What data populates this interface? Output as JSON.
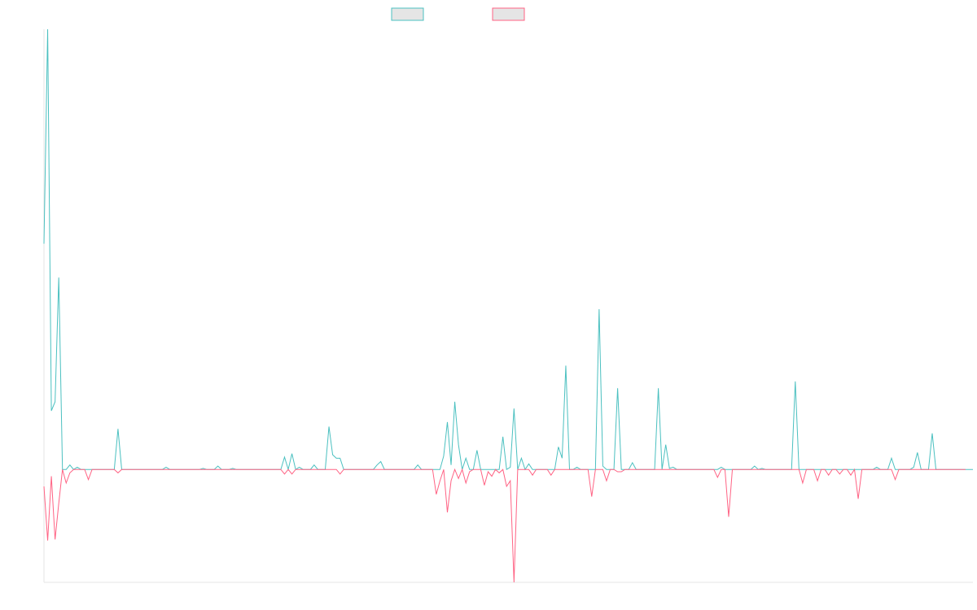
{
  "chart_data": {
    "type": "line",
    "title": "",
    "xlabel": "",
    "ylabel": "",
    "grid": false,
    "legend_position": "top-center",
    "x_count": 252,
    "ylim": [
      -1,
      3.9
    ],
    "series": [
      {
        "color": "#4bc0c0",
        "values": [
          2.0,
          3.9,
          0.52,
          0.6,
          1.7,
          0.0,
          0.0,
          0.04,
          0.0,
          0.02,
          0.0,
          0.0,
          0.0,
          0.0,
          0.0,
          0.0,
          0.0,
          0.0,
          0.0,
          0.0,
          0.36,
          0.0,
          0.0,
          0.0,
          0.0,
          0.0,
          0.0,
          0.0,
          0.0,
          0.0,
          0.0,
          0.0,
          0.0,
          0.02,
          0.0,
          0.0,
          0.0,
          0.0,
          0.0,
          0.0,
          0.0,
          0.0,
          0.0,
          0.01,
          0.0,
          0.0,
          0.0,
          0.03,
          0.0,
          0.0,
          0.0,
          0.01,
          0.0,
          0.0,
          0.0,
          0.0,
          0.0,
          0.0,
          0.0,
          0.0,
          0.0,
          0.0,
          0.0,
          0.0,
          0.0,
          0.11,
          0.0,
          0.14,
          0.0,
          0.02,
          0.0,
          0.0,
          0.0,
          0.04,
          0.0,
          0.0,
          0.0,
          0.38,
          0.13,
          0.1,
          0.1,
          0.0,
          0.0,
          0.0,
          0.0,
          0.0,
          0.0,
          0.0,
          0.0,
          0.0,
          0.04,
          0.07,
          0.0,
          0.0,
          0.0,
          0.0,
          0.0,
          0.0,
          0.0,
          0.0,
          0.0,
          0.04,
          0.0,
          0.0,
          0.0,
          0.0,
          0.0,
          0.0,
          0.12,
          0.42,
          0.04,
          0.6,
          0.22,
          0.0,
          0.1,
          0.0,
          0.0,
          0.17,
          0.0,
          0.0,
          0.0,
          0.0,
          0.0,
          0.0,
          0.29,
          0.0,
          0.02,
          0.54,
          0.0,
          0.1,
          0.0,
          0.05,
          0.0,
          0.0,
          0.0,
          0.0,
          0.0,
          0.0,
          0.0,
          0.2,
          0.1,
          0.92,
          0.0,
          0.0,
          0.02,
          0.0,
          0.0,
          0.0,
          0.0,
          0.0,
          1.42,
          0.03,
          0.0,
          0.0,
          0.0,
          0.72,
          0.0,
          0.0,
          0.0,
          0.06,
          0.0,
          0.0,
          0.0,
          0.0,
          0.0,
          0.0,
          0.72,
          0.0,
          0.22,
          0.01,
          0.02,
          0.0,
          0.0,
          0.0,
          0.0,
          0.0,
          0.0,
          0.0,
          0.0,
          0.0,
          0.0,
          0.0,
          0.0,
          0.02,
          0.0,
          0.0,
          0.0,
          0.0,
          0.0,
          0.0,
          0.0,
          0.0,
          0.03,
          0.0,
          0.01,
          0.0,
          0.0,
          0.0,
          0.0,
          0.0,
          0.0,
          0.0,
          0.0,
          0.78,
          0.0,
          0.0,
          0.0,
          0.0,
          0.0,
          0.0,
          0.0,
          0.0,
          0.0,
          0.0,
          0.0,
          0.0,
          0.0,
          0.0,
          0.0,
          0.0,
          0.0,
          0.0,
          0.0,
          0.0,
          0.0,
          0.02,
          0.0,
          0.0,
          0.0,
          0.1,
          0.0,
          0.0,
          0.0,
          0.0,
          0.0,
          0.02,
          0.15,
          0.0,
          0.0,
          0.0,
          0.32,
          0.0,
          0.0,
          0.0,
          0.0,
          0.0,
          0.0,
          0.0,
          0.0,
          0.0,
          0.0,
          0.0
        ]
      },
      {
        "color": "#ff6384",
        "values": [
          -0.15,
          -0.63,
          -0.06,
          -0.62,
          -0.3,
          0.0,
          -0.12,
          -0.03,
          0.0,
          0.0,
          0.0,
          0.0,
          -0.09,
          0.0,
          0.0,
          0.0,
          0.0,
          0.0,
          0.0,
          0.0,
          -0.03,
          0.0,
          0.0,
          0.0,
          0.0,
          0.0,
          0.0,
          0.0,
          0.0,
          0.0,
          0.0,
          0.0,
          0.0,
          0.0,
          0.0,
          0.0,
          0.0,
          0.0,
          0.0,
          0.0,
          0.0,
          0.0,
          0.0,
          0.0,
          0.0,
          0.0,
          0.0,
          0.0,
          0.0,
          0.0,
          0.0,
          0.0,
          0.0,
          0.0,
          0.0,
          0.0,
          0.0,
          0.0,
          0.0,
          0.0,
          0.0,
          0.0,
          0.0,
          0.0,
          0.0,
          -0.04,
          0.0,
          -0.04,
          0.0,
          0.0,
          0.0,
          0.0,
          0.0,
          0.0,
          0.0,
          0.0,
          0.0,
          0.0,
          0.0,
          0.0,
          -0.04,
          0.0,
          0.0,
          0.0,
          0.0,
          0.0,
          0.0,
          0.0,
          0.0,
          0.0,
          0.0,
          0.0,
          0.0,
          0.0,
          0.0,
          0.0,
          0.0,
          0.0,
          0.0,
          0.0,
          0.0,
          0.0,
          0.0,
          0.0,
          0.0,
          0.0,
          -0.22,
          -0.1,
          0.0,
          -0.38,
          -0.1,
          0.0,
          -0.08,
          0.0,
          -0.12,
          -0.02,
          0.0,
          0.0,
          0.0,
          -0.14,
          -0.02,
          -0.06,
          0.0,
          -0.03,
          0.0,
          -0.15,
          -0.1,
          -1.0,
          0.0,
          0.0,
          0.0,
          0.0,
          -0.05,
          0.0,
          0.0,
          0.0,
          0.0,
          -0.05,
          0.0,
          0.0,
          0.0,
          0.0,
          0.0,
          0.0,
          0.0,
          0.0,
          0.0,
          0.0,
          -0.24,
          0.0,
          0.0,
          0.0,
          -0.1,
          0.0,
          0.0,
          -0.02,
          -0.02,
          0.0,
          0.0,
          0.0,
          0.0,
          0.0,
          0.0,
          0.0,
          0.0,
          0.0,
          0.0,
          0.0,
          0.0,
          0.0,
          0.0,
          0.0,
          0.0,
          0.0,
          0.0,
          0.0,
          0.0,
          0.0,
          0.0,
          0.0,
          0.0,
          0.0,
          -0.07,
          0.0,
          0.0,
          -0.42,
          0.0,
          0.0,
          0.0,
          0.0,
          0.0,
          0.0,
          0.0,
          0.0,
          0.0,
          0.0,
          0.0,
          0.0,
          0.0,
          0.0,
          0.0,
          0.0,
          0.0,
          0.0,
          0.0,
          -0.12,
          0.0,
          0.0,
          0.0,
          -0.1,
          0.0,
          0.0,
          -0.05,
          0.0,
          0.0,
          -0.04,
          0.0,
          0.0,
          -0.05,
          0.0,
          -0.26,
          0.0,
          0.0,
          0.0,
          0.0,
          0.0,
          0.0,
          0.0,
          0.0,
          0.0,
          -0.09,
          0.0,
          0.0,
          0.0,
          0.0,
          0.0,
          0.0,
          0.0,
          0.0,
          0.0,
          0.0,
          0.0,
          0.0,
          0.0,
          0.0,
          0.0,
          0.0,
          0.0,
          0.0,
          0.0
        ]
      }
    ]
  }
}
